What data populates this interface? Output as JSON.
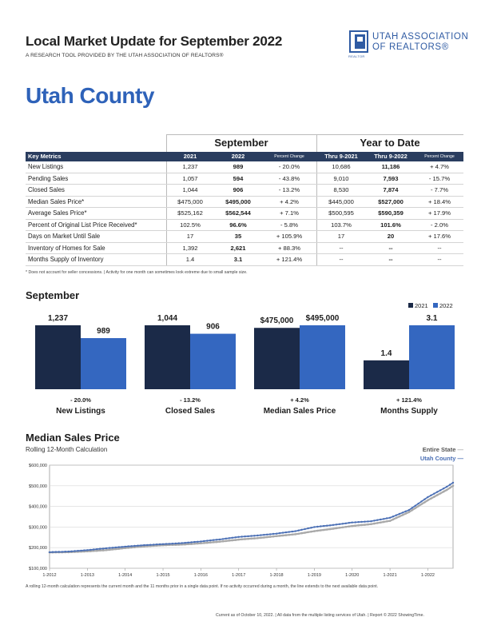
{
  "header": {
    "title": "Local Market Update for September 2022",
    "subtitle": "A RESEARCH TOOL PROVIDED BY THE UTAH ASSOCIATION OF REALTORS®",
    "logo_line1": "UTAH ASSOCIATION",
    "logo_line2": "OF REALTORS®",
    "logo_mark_text": "REALTOR"
  },
  "area_name": "Utah County",
  "table": {
    "group_month": "September",
    "group_ytd": "Year to Date",
    "columns": [
      "Key Metrics",
      "2021",
      "2022",
      "Percent Change",
      "Thru 9-2021",
      "Thru 9-2022",
      "Percent Change"
    ],
    "rows": [
      [
        "New Listings",
        "1,237",
        "989",
        "- 20.0%",
        "10,686",
        "11,186",
        "+ 4.7%"
      ],
      [
        "Pending Sales",
        "1,057",
        "594",
        "- 43.8%",
        "9,010",
        "7,593",
        "- 15.7%"
      ],
      [
        "Closed Sales",
        "1,044",
        "906",
        "- 13.2%",
        "8,530",
        "7,874",
        "- 7.7%"
      ],
      [
        "Median Sales Price*",
        "$475,000",
        "$495,000",
        "+ 4.2%",
        "$445,000",
        "$527,000",
        "+ 18.4%"
      ],
      [
        "Average Sales Price*",
        "$525,162",
        "$562,544",
        "+ 7.1%",
        "$500,595",
        "$590,359",
        "+ 17.9%"
      ],
      [
        "Percent of Original List Price Received*",
        "102.5%",
        "96.6%",
        "- 5.8%",
        "103.7%",
        "101.6%",
        "- 2.0%"
      ],
      [
        "Days on Market Until Sale",
        "17",
        "35",
        "+ 105.9%",
        "17",
        "20",
        "+ 17.6%"
      ],
      [
        "Inventory of Homes for Sale",
        "1,392",
        "2,621",
        "+ 88.3%",
        "--",
        "--",
        "--"
      ],
      [
        "Months Supply of Inventory",
        "1.4",
        "3.1",
        "+ 121.4%",
        "--",
        "--",
        "--"
      ]
    ],
    "footnote": "* Does not account for seller concessions.  |  Activity for one month can sometimes look extreme due to small sample size."
  },
  "bar_section": {
    "title": "September",
    "legend": [
      "2021",
      "2022"
    ]
  },
  "line_section": {
    "title": "Median Sales Price",
    "subtitle": "Rolling 12-Month Calculation",
    "legend": [
      "Entire State",
      "Utah County"
    ],
    "note": "A rolling 12-month calculation represents the current month and the 11 months prior in a single data point. If no activity occurred during a month, the line extends to the next available data point."
  },
  "footer": "Current as of October 10, 2022.  |  All data from the multiple listing services of Utah.  |  Report © 2022 ShowingTime.",
  "colors": {
    "navy": "#1b2a48",
    "blue": "#3467c0",
    "state_line": "#a9a9a9",
    "county_line": "#4a6fb5",
    "header_bg": "#2a3d5f",
    "title_blue": "#2e62b9"
  },
  "chart_data": [
    {
      "type": "bar",
      "title": "September",
      "panels": [
        {
          "name": "New Listings",
          "change": "- 20.0%",
          "labels": [
            "1,237",
            "989"
          ],
          "values": [
            1237,
            989
          ]
        },
        {
          "name": "Closed Sales",
          "change": "- 13.2%",
          "labels": [
            "1,044",
            "906"
          ],
          "values": [
            1044,
            906
          ]
        },
        {
          "name": "Median Sales Price",
          "change": "+ 4.2%",
          "labels": [
            "$475,000",
            "$495,000"
          ],
          "values": [
            475000,
            495000
          ]
        },
        {
          "name": "Months Supply",
          "change": "+ 121.4%",
          "labels": [
            "1.4",
            "3.1"
          ],
          "values": [
            1.4,
            3.1
          ]
        }
      ],
      "series": [
        {
          "name": "2021"
        },
        {
          "name": "2022"
        }
      ]
    },
    {
      "type": "line",
      "title": "Median Sales Price",
      "subtitle": "Rolling 12-Month Calculation",
      "x_ticks": [
        "1-2012",
        "1-2013",
        "1-2014",
        "1-2015",
        "1-2016",
        "1-2017",
        "1-2018",
        "1-2019",
        "1-2020",
        "1-2021",
        "1-2022"
      ],
      "y_ticks": [
        "$100,000",
        "$200,000",
        "$300,000",
        "$400,000",
        "$500,000",
        "$600,000"
      ],
      "ylim": [
        100000,
        600000
      ],
      "xlim": [
        "2012-01",
        "2022-09"
      ],
      "grid": true,
      "legend_position": "top-right",
      "series": [
        {
          "name": "Entire State",
          "points": [
            [
              "2012-01",
              177000
            ],
            [
              "2012-07",
              178000
            ],
            [
              "2013-01",
              182000
            ],
            [
              "2013-07",
              188000
            ],
            [
              "2014-01",
              198000
            ],
            [
              "2014-07",
              206000
            ],
            [
              "2015-01",
              212000
            ],
            [
              "2015-07",
              215000
            ],
            [
              "2016-01",
              221000
            ],
            [
              "2016-07",
              229000
            ],
            [
              "2017-01",
              239000
            ],
            [
              "2017-07",
              246000
            ],
            [
              "2018-01",
              256000
            ],
            [
              "2018-07",
              265000
            ],
            [
              "2019-01",
              280000
            ],
            [
              "2019-07",
              292000
            ],
            [
              "2020-01",
              305000
            ],
            [
              "2020-07",
              314000
            ],
            [
              "2021-01",
              330000
            ],
            [
              "2021-07",
              372000
            ],
            [
              "2022-01",
              430000
            ],
            [
              "2022-07",
              480000
            ],
            [
              "2022-09",
              500000
            ]
          ]
        },
        {
          "name": "Utah County",
          "points": [
            [
              "2012-01",
              178000
            ],
            [
              "2012-07",
              181000
            ],
            [
              "2013-01",
              188000
            ],
            [
              "2013-07",
              197000
            ],
            [
              "2014-01",
              205000
            ],
            [
              "2014-07",
              212000
            ],
            [
              "2015-01",
              217000
            ],
            [
              "2015-07",
              222000
            ],
            [
              "2016-01",
              230000
            ],
            [
              "2016-07",
              240000
            ],
            [
              "2017-01",
              252000
            ],
            [
              "2017-07",
              259000
            ],
            [
              "2018-01",
              268000
            ],
            [
              "2018-07",
              280000
            ],
            [
              "2019-01",
              300000
            ],
            [
              "2019-07",
              310000
            ],
            [
              "2020-01",
              322000
            ],
            [
              "2020-07",
              328000
            ],
            [
              "2021-01",
              345000
            ],
            [
              "2021-07",
              382000
            ],
            [
              "2022-01",
              445000
            ],
            [
              "2022-07",
              495000
            ],
            [
              "2022-09",
              515000
            ]
          ]
        }
      ]
    }
  ]
}
